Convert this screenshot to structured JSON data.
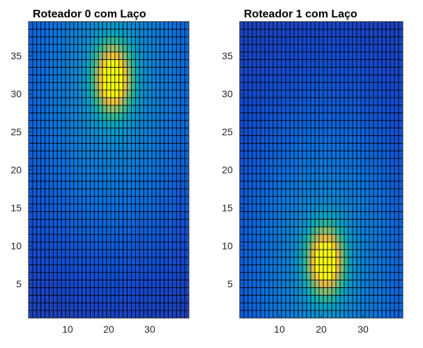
{
  "chart_data": [
    {
      "type": "heatmap",
      "title": "Roteador 0 com Laço",
      "xlabel": "",
      "ylabel": "",
      "x_range": [
        1,
        39
      ],
      "y_range": [
        1,
        39
      ],
      "xlim": [
        1,
        39
      ],
      "ylim": [
        1,
        39
      ],
      "x_ticks": [
        10,
        20,
        30
      ],
      "y_ticks": [
        5,
        10,
        15,
        20,
        25,
        30,
        35
      ],
      "grid": true,
      "colormap": "parula",
      "peak": {
        "x": 21,
        "y": 32
      },
      "field": {
        "sigma": 3.2,
        "spread": 14,
        "peak_weight": 0.82,
        "broad_weight": 0.3,
        "floor": 0.1,
        "bottom_falloff": 0.45
      }
    },
    {
      "type": "heatmap",
      "title": "Roteador 1 com Laço",
      "xlabel": "",
      "ylabel": "",
      "x_range": [
        1,
        39
      ],
      "y_range": [
        1,
        39
      ],
      "xlim": [
        1,
        39
      ],
      "ylim": [
        1,
        39
      ],
      "x_ticks": [
        10,
        20,
        30
      ],
      "y_ticks": [
        5,
        10,
        15,
        20,
        25,
        30,
        35
      ],
      "grid": true,
      "colormap": "parula",
      "peak": {
        "x": 21,
        "y": 8
      },
      "field": {
        "sigma": 3.2,
        "spread": 14,
        "peak_weight": 0.82,
        "broad_weight": 0.3,
        "floor": 0.08,
        "bottom_falloff": 0.0
      }
    }
  ],
  "colors": {
    "grid_line": "#000000",
    "axis": "#262626",
    "background": "#ffffff"
  }
}
